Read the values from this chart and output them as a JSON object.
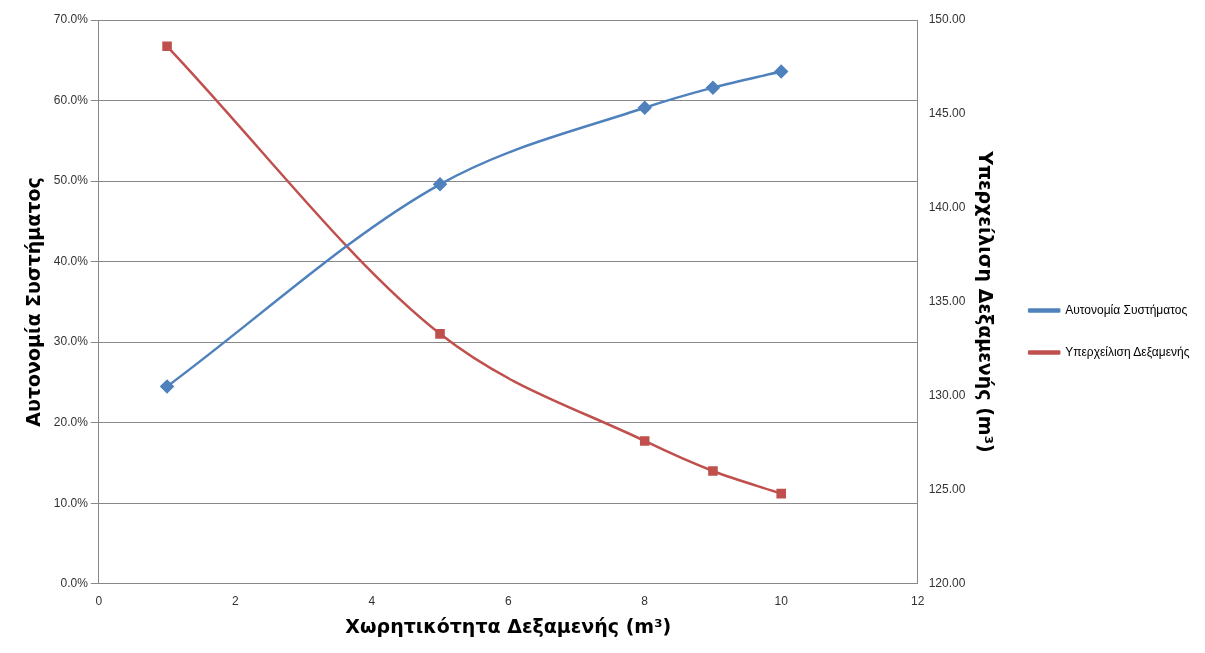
{
  "chart_data": {
    "type": "line",
    "xlabel": "Χωρητικότητα Δεξαμενής (m³)",
    "ylabel": "Αυτονομία Συστήματος",
    "y2label": "Υπερχείλιση Δεξαμενής (m³)",
    "x": [
      1,
      5,
      8,
      9,
      10
    ],
    "series": [
      {
        "name": "Αυτονομία Συστήματος",
        "color": "#4f81bd",
        "marker": "diamond",
        "values": [
          24.5,
          49.6,
          59.1,
          61.6,
          63.6
        ]
      },
      {
        "name": "Υπερχείλιση Δεξαμενής",
        "color": "#c0504d",
        "marker": "square",
        "axis": "y2",
        "values": [
          148.6,
          133.3,
          127.6,
          126.0,
          124.8
        ]
      }
    ],
    "xlim": [
      0,
      12
    ],
    "xticks": [
      0,
      2,
      4,
      6,
      8,
      10,
      12
    ],
    "ylim": [
      0,
      70
    ],
    "yticks": [
      {
        "value": 0,
        "label": "0.0%"
      },
      {
        "value": 10,
        "label": "10.0%"
      },
      {
        "value": 20,
        "label": "20.0%"
      },
      {
        "value": 30,
        "label": "30.0%"
      },
      {
        "value": 40,
        "label": "40.0%"
      },
      {
        "value": 50,
        "label": "50.0%"
      },
      {
        "value": 60,
        "label": "60.0%"
      },
      {
        "value": 70,
        "label": "70.0%"
      }
    ],
    "y2lim": [
      120,
      150
    ],
    "y2ticks": [
      {
        "value": 120,
        "label": "120.00"
      },
      {
        "value": 125,
        "label": "125.00"
      },
      {
        "value": 130,
        "label": "130.00"
      },
      {
        "value": 135,
        "label": "135.00"
      },
      {
        "value": 140,
        "label": "140.00"
      },
      {
        "value": 145,
        "label": "145.00"
      },
      {
        "value": 150,
        "label": "150.00"
      }
    ],
    "grid": "y",
    "legend": "right",
    "line_style": "solid"
  }
}
